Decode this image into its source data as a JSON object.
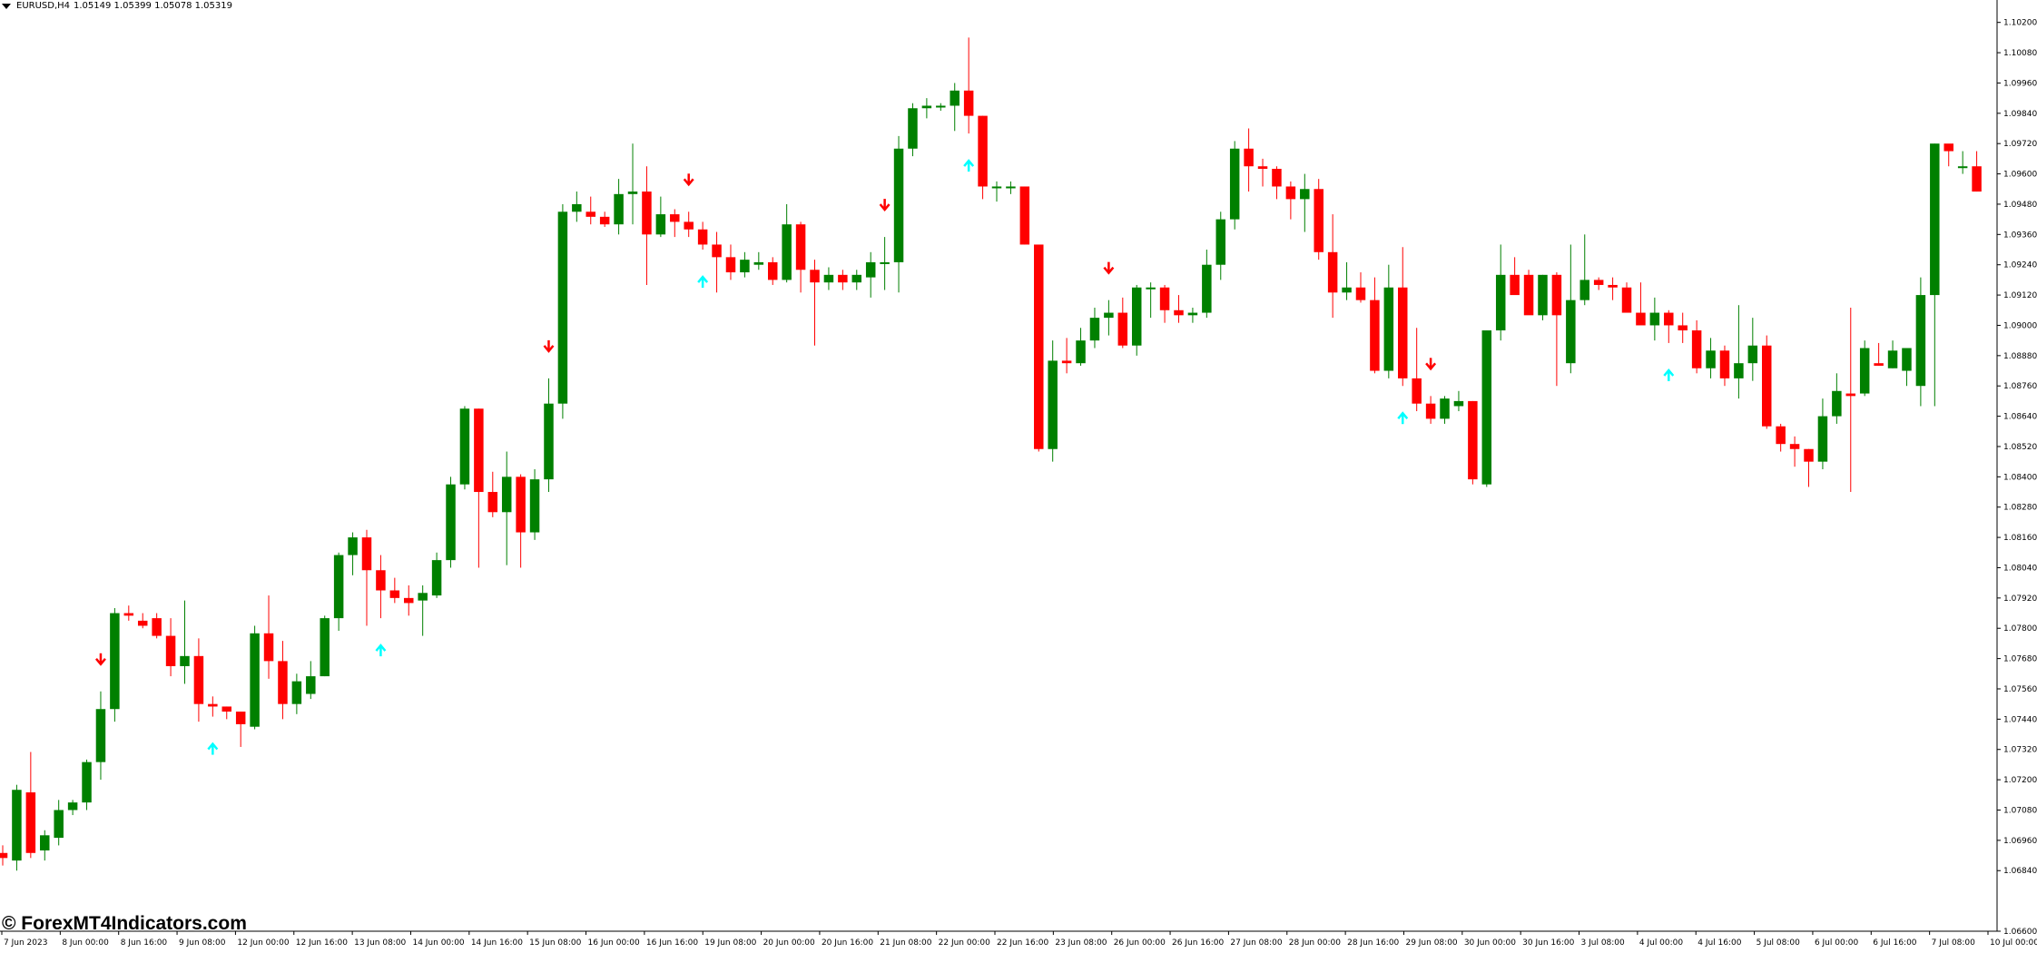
{
  "window": {
    "symbol": "EURUSD,H4",
    "ohlc": "1.05149 1.05399 1.05078 1.05319"
  },
  "watermark": "© ForexMT4Indicators.com",
  "colors": {
    "background": "#ffffff",
    "bull": "#008000",
    "bear": "#ff0000",
    "buy_arrow": "#00ffff",
    "sell_arrow": "#ff0000",
    "axis": "#000000"
  },
  "chart_data": {
    "type": "candlestick",
    "title": "EURUSD,H4",
    "ylim": [
      1.066,
      1.1026
    ],
    "y_ticks": [
      "1.10200",
      "1.10080",
      "1.09960",
      "1.09840",
      "1.09720",
      "1.09600",
      "1.09480",
      "1.09360",
      "1.09240",
      "1.09120",
      "1.09000",
      "1.08880",
      "1.08760",
      "1.08640",
      "1.08520",
      "1.08400",
      "1.08280",
      "1.08160",
      "1.08040",
      "1.07920",
      "1.07800",
      "1.07680",
      "1.07560",
      "1.07440",
      "1.07320",
      "1.07200",
      "1.07080",
      "1.06960",
      "1.06840",
      "1.06600"
    ],
    "x_ticks": [
      "7 Jun 2023",
      "8 Jun 00:00",
      "8 Jun 16:00",
      "9 Jun 08:00",
      "12 Jun 00:00",
      "12 Jun 16:00",
      "13 Jun 08:00",
      "14 Jun 00:00",
      "14 Jun 16:00",
      "15 Jun 08:00",
      "16 Jun 00:00",
      "16 Jun 16:00",
      "19 Jun 08:00",
      "20 Jun 00:00",
      "20 Jun 16:00",
      "21 Jun 08:00",
      "22 Jun 00:00",
      "22 Jun 16:00",
      "23 Jun 08:00",
      "26 Jun 00:00",
      "26 Jun 16:00",
      "27 Jun 08:00",
      "28 Jun 00:00",
      "28 Jun 16:00",
      "29 Jun 08:00",
      "30 Jun 00:00",
      "30 Jun 16:00",
      "3 Jul 08:00",
      "4 Jul 00:00",
      "4 Jul 16:00",
      "5 Jul 08:00",
      "6 Jul 00:00",
      "6 Jul 16:00",
      "7 Jul 08:00",
      "10 Jul 00:00"
    ],
    "candles": [
      [
        1.0691,
        1.0694,
        1.0686,
        1.0689
      ],
      [
        1.0688,
        1.0718,
        1.0684,
        1.0716
      ],
      [
        1.0715,
        1.0731,
        1.0689,
        1.0691
      ],
      [
        1.0692,
        1.07,
        1.0688,
        1.0698
      ],
      [
        1.0697,
        1.0712,
        1.0694,
        1.0708
      ],
      [
        1.0708,
        1.0712,
        1.0706,
        1.0711
      ],
      [
        1.0711,
        1.0728,
        1.0708,
        1.0727
      ],
      [
        1.0727,
        1.0755,
        1.072,
        1.0748
      ],
      [
        1.0748,
        1.0788,
        1.0743,
        1.0786
      ],
      [
        1.0786,
        1.0789,
        1.0783,
        1.0785
      ],
      [
        1.0783,
        1.0786,
        1.078,
        1.0781
      ],
      [
        1.0784,
        1.0786,
        1.0776,
        1.0777
      ],
      [
        1.0777,
        1.0784,
        1.0761,
        1.0765
      ],
      [
        1.0765,
        1.0791,
        1.0758,
        1.0769
      ],
      [
        1.0769,
        1.0776,
        1.0743,
        1.075
      ],
      [
        1.075,
        1.0753,
        1.0745,
        1.0749
      ],
      [
        1.0749,
        1.0749,
        1.0744,
        1.0747
      ],
      [
        1.0747,
        1.0747,
        1.0733,
        1.0742
      ],
      [
        1.0741,
        1.0781,
        1.074,
        1.0778
      ],
      [
        1.0778,
        1.0793,
        1.076,
        1.0767
      ],
      [
        1.0767,
        1.0775,
        1.0744,
        1.075
      ],
      [
        1.075,
        1.0762,
        1.0746,
        1.0759
      ],
      [
        1.0754,
        1.0767,
        1.0752,
        1.0761
      ],
      [
        1.0761,
        1.0785,
        1.0761,
        1.0784
      ],
      [
        1.0784,
        1.081,
        1.0779,
        1.0809
      ],
      [
        1.0809,
        1.0818,
        1.0801,
        1.0816
      ],
      [
        1.0816,
        1.0819,
        1.0781,
        1.0803
      ],
      [
        1.0803,
        1.0809,
        1.0784,
        1.0795
      ],
      [
        1.0795,
        1.08,
        1.079,
        1.0792
      ],
      [
        1.0792,
        1.0797,
        1.0785,
        1.079
      ],
      [
        1.0791,
        1.0797,
        1.0777,
        1.0794
      ],
      [
        1.0793,
        1.081,
        1.0792,
        1.0807
      ],
      [
        1.0807,
        1.084,
        1.0804,
        1.0837
      ],
      [
        1.0837,
        1.0868,
        1.0835,
        1.0867
      ],
      [
        1.0867,
        1.0867,
        1.0804,
        1.0834
      ],
      [
        1.0834,
        1.0842,
        1.0824,
        1.0826
      ],
      [
        1.0826,
        1.085,
        1.0805,
        1.084
      ],
      [
        1.084,
        1.0841,
        1.0804,
        1.0818
      ],
      [
        1.0818,
        1.0843,
        1.0815,
        1.0839
      ],
      [
        1.0839,
        1.0879,
        1.0834,
        1.0869
      ],
      [
        1.0869,
        1.0948,
        1.0863,
        1.0945
      ],
      [
        1.0945,
        1.0953,
        1.0941,
        1.0948
      ],
      [
        1.0945,
        1.0951,
        1.094,
        1.0943
      ],
      [
        1.0943,
        1.0945,
        1.0939,
        1.094
      ],
      [
        1.094,
        1.0958,
        1.0936,
        1.0952
      ],
      [
        1.0952,
        1.0972,
        1.094,
        1.0953
      ],
      [
        1.0953,
        1.0963,
        1.0916,
        1.0936
      ],
      [
        1.0936,
        1.0951,
        1.0935,
        1.0944
      ],
      [
        1.0944,
        1.0946,
        1.0935,
        1.0941
      ],
      [
        1.0941,
        1.0945,
        1.0935,
        1.0938
      ],
      [
        1.0938,
        1.0941,
        1.093,
        1.0932
      ],
      [
        1.0932,
        1.0937,
        1.0913,
        1.0927
      ],
      [
        1.0927,
        1.0932,
        1.0918,
        1.0921
      ],
      [
        1.0921,
        1.0929,
        1.0919,
        1.0926
      ],
      [
        1.0924,
        1.0929,
        1.0922,
        1.0925
      ],
      [
        1.0925,
        1.0927,
        1.0916,
        1.0918
      ],
      [
        1.0918,
        1.0948,
        1.0917,
        1.094
      ],
      [
        1.094,
        1.0941,
        1.0913,
        1.0922
      ],
      [
        1.0922,
        1.0926,
        1.0892,
        1.0917
      ],
      [
        1.0917,
        1.0923,
        1.0914,
        1.092
      ],
      [
        1.092,
        1.0922,
        1.0914,
        1.0917
      ],
      [
        1.0917,
        1.0922,
        1.0914,
        1.092
      ],
      [
        1.0919,
        1.0929,
        1.0911,
        1.0925
      ],
      [
        1.0925,
        1.0935,
        1.0914,
        1.0925
      ],
      [
        1.0925,
        1.0975,
        1.0913,
        1.097
      ],
      [
        1.097,
        1.0988,
        1.0967,
        1.0986
      ],
      [
        1.0986,
        1.099,
        1.0982,
        1.0987
      ],
      [
        1.0987,
        1.0988,
        1.0985,
        1.0987
      ],
      [
        1.0987,
        1.0996,
        1.0977,
        1.0993
      ],
      [
        1.0993,
        1.1014,
        1.0976,
        1.0983
      ],
      [
        1.0983,
        1.0983,
        1.095,
        1.0955
      ],
      [
        1.0955,
        1.0957,
        1.0949,
        1.0955
      ],
      [
        1.0955,
        1.0957,
        1.0952,
        1.0955
      ],
      [
        1.0955,
        1.0955,
        1.0932,
        1.0932
      ],
      [
        1.0932,
        1.0932,
        1.085,
        1.0851
      ],
      [
        1.0851,
        1.0894,
        1.0846,
        1.0886
      ],
      [
        1.0886,
        1.0895,
        1.0881,
        1.0885
      ],
      [
        1.0885,
        1.0899,
        1.0884,
        1.0894
      ],
      [
        1.0894,
        1.0907,
        1.0891,
        1.0903
      ],
      [
        1.0903,
        1.091,
        1.0896,
        1.0905
      ],
      [
        1.0905,
        1.0911,
        1.0891,
        1.0892
      ],
      [
        1.0892,
        1.0916,
        1.0888,
        1.0915
      ],
      [
        1.0915,
        1.0917,
        1.0903,
        1.0915
      ],
      [
        1.0915,
        1.0916,
        1.0901,
        1.0906
      ],
      [
        1.0906,
        1.0912,
        1.0901,
        1.0904
      ],
      [
        1.0904,
        1.0907,
        1.0901,
        1.0905
      ],
      [
        1.0905,
        1.093,
        1.0903,
        1.0924
      ],
      [
        1.0924,
        1.0945,
        1.0918,
        1.0942
      ],
      [
        1.0942,
        1.0973,
        1.0938,
        1.097
      ],
      [
        1.097,
        1.0978,
        1.0953,
        1.0963
      ],
      [
        1.0963,
        1.0966,
        1.0955,
        1.0962
      ],
      [
        1.0962,
        1.0963,
        1.095,
        1.0955
      ],
      [
        1.0955,
        1.0957,
        1.0942,
        1.095
      ],
      [
        1.095,
        1.096,
        1.0937,
        1.0954
      ],
      [
        1.0954,
        1.0958,
        1.0926,
        1.0929
      ],
      [
        1.0929,
        1.0944,
        1.0903,
        1.0913
      ],
      [
        1.0913,
        1.0925,
        1.091,
        1.0915
      ],
      [
        1.0915,
        1.0921,
        1.0909,
        1.091
      ],
      [
        1.091,
        1.0919,
        1.0881,
        1.0882
      ],
      [
        1.0882,
        1.0924,
        1.0879,
        1.0915
      ],
      [
        1.0915,
        1.0931,
        1.0876,
        1.0879
      ],
      [
        1.0879,
        1.0899,
        1.0866,
        1.0869
      ],
      [
        1.0869,
        1.0872,
        1.0861,
        1.0863
      ],
      [
        1.0863,
        1.0872,
        1.0861,
        1.0871
      ],
      [
        1.0868,
        1.0874,
        1.0866,
        1.087
      ],
      [
        1.087,
        1.087,
        1.0837,
        1.0839
      ],
      [
        1.0837,
        1.0898,
        1.0836,
        1.0898
      ],
      [
        1.0898,
        1.0932,
        1.0894,
        1.092
      ],
      [
        1.092,
        1.0927,
        1.0913,
        1.0912
      ],
      [
        1.092,
        1.0922,
        1.0906,
        1.0904
      ],
      [
        1.0904,
        1.092,
        1.0902,
        1.092
      ],
      [
        1.092,
        1.0921,
        1.0876,
        1.0904
      ],
      [
        1.0885,
        1.0932,
        1.0881,
        1.091
      ],
      [
        1.091,
        1.0936,
        1.0908,
        1.0918
      ],
      [
        1.0918,
        1.0919,
        1.0914,
        1.0916
      ],
      [
        1.0916,
        1.0919,
        1.091,
        1.0915
      ],
      [
        1.0915,
        1.0917,
        1.0907,
        1.0905
      ],
      [
        1.0905,
        1.0917,
        1.0902,
        1.09
      ],
      [
        1.09,
        1.0911,
        1.0894,
        1.0905
      ],
      [
        1.0905,
        1.0906,
        1.0893,
        1.09
      ],
      [
        1.09,
        1.0905,
        1.0893,
        1.0898
      ],
      [
        1.0898,
        1.0902,
        1.0881,
        1.0883
      ],
      [
        1.0883,
        1.0895,
        1.0879,
        1.089
      ],
      [
        1.089,
        1.0892,
        1.0876,
        1.0879
      ],
      [
        1.0879,
        1.0908,
        1.0871,
        1.0885
      ],
      [
        1.0885,
        1.0903,
        1.0878,
        1.0892
      ],
      [
        1.0892,
        1.0896,
        1.0859,
        1.086
      ],
      [
        1.086,
        1.0861,
        1.085,
        1.0853
      ],
      [
        1.0853,
        1.0856,
        1.0844,
        1.0851
      ],
      [
        1.0851,
        1.0851,
        1.0836,
        1.0846
      ],
      [
        1.0846,
        1.0871,
        1.0843,
        1.0864
      ],
      [
        1.0864,
        1.0881,
        1.0861,
        1.0874
      ],
      [
        1.0873,
        1.0907,
        1.0834,
        1.0872
      ],
      [
        1.0873,
        1.0894,
        1.0872,
        1.0891
      ],
      [
        1.0885,
        1.0893,
        1.0884,
        1.0884
      ],
      [
        1.0883,
        1.0894,
        1.0883,
        1.089
      ],
      [
        1.0882,
        1.0891,
        1.0876,
        1.0891
      ],
      [
        1.0876,
        1.0919,
        1.0868,
        1.0912
      ],
      [
        1.0912,
        1.0972,
        1.0868,
        1.0972
      ],
      [
        1.0972,
        1.0971,
        1.0963,
        1.0969
      ],
      [
        1.0963,
        1.0969,
        1.096,
        1.0963
      ],
      [
        1.0963,
        1.0969,
        1.0953,
        1.0953
      ]
    ],
    "buy_arrow_indices": [
      15,
      27,
      50,
      69,
      100,
      119
    ],
    "sell_arrow_indices": [
      7,
      39,
      49,
      63,
      79,
      102
    ]
  }
}
